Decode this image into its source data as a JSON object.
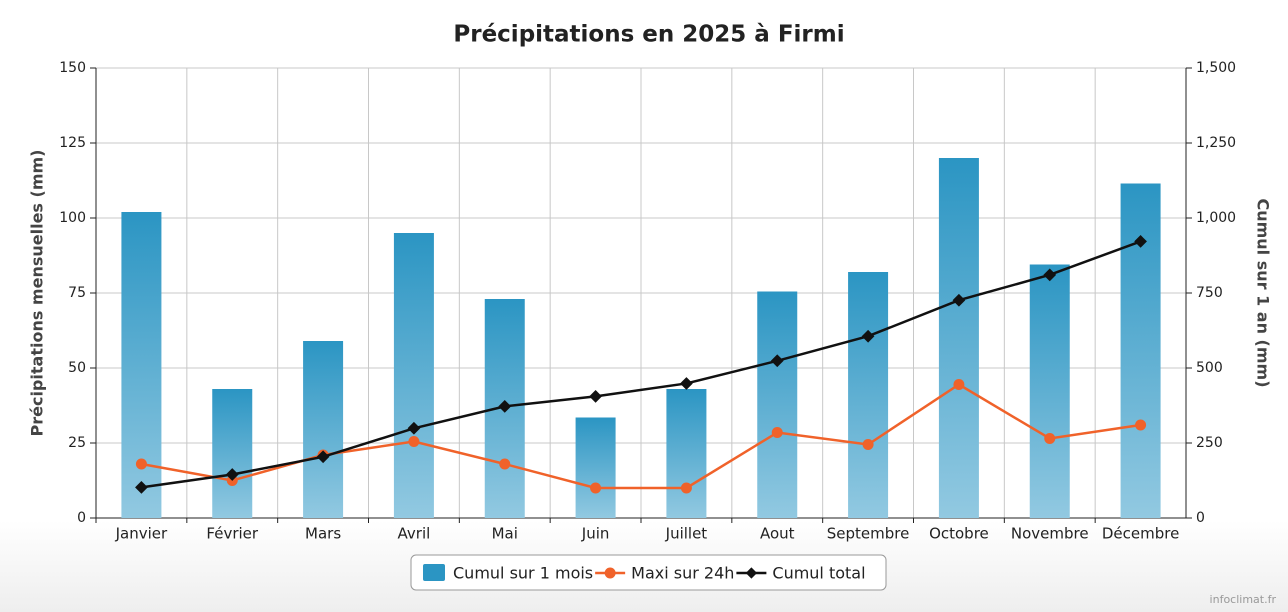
{
  "chart_data": {
    "type": "bar-line",
    "title": "Précipitations en 2025 à Firmi",
    "ylabel": "Précipitations mensuelles (mm)",
    "y2label": "Cumul sur 1 an (mm)",
    "watermark": "infoclimat.fr",
    "categories": [
      "Janvier",
      "Février",
      "Mars",
      "Avril",
      "Mai",
      "Juin",
      "Juillet",
      "Aout",
      "Septembre",
      "Octobre",
      "Novembre",
      "Décembre"
    ],
    "series": [
      {
        "name": "Cumul sur 1 mois",
        "type": "bar",
        "color": "#2b95c3",
        "values": [
          102,
          43,
          59,
          95,
          73,
          33.5,
          43,
          75.5,
          82,
          120,
          84.5,
          111.5
        ]
      },
      {
        "name": "Maxi sur 24h",
        "type": "line",
        "color": "#f0622a",
        "values": [
          18,
          12.5,
          21,
          25.5,
          18,
          10,
          10,
          28.5,
          24.5,
          44.5,
          26.5,
          31
        ]
      },
      {
        "name": "Cumul total",
        "type": "line",
        "axis": "y2",
        "color": "#111111",
        "values": [
          102,
          145,
          204,
          299,
          372,
          405.5,
          448.5,
          524,
          606,
          726,
          810.5,
          922
        ]
      }
    ],
    "ylim": [
      0,
      150
    ],
    "yticks": [
      0,
      25,
      50,
      75,
      100,
      125,
      150
    ],
    "y2lim": [
      0,
      1500
    ],
    "y2ticks": [
      0,
      250,
      500,
      750,
      {
        "value": 1000,
        "label": "1,000"
      },
      {
        "value": 1250,
        "label": "1,250"
      },
      {
        "value": 1500,
        "label": "1,500"
      }
    ],
    "grid": true
  }
}
